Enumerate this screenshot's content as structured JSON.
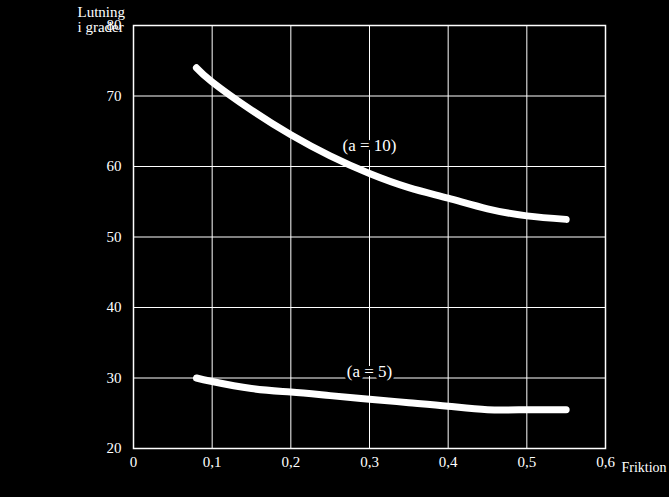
{
  "chart_data": {
    "type": "line",
    "y_label": "Lutning\ni grader",
    "x_label": "Friktion",
    "x": [
      0.08,
      0.1,
      0.15,
      0.2,
      0.25,
      0.3,
      0.35,
      0.4,
      0.45,
      0.5,
      0.55
    ],
    "series": [
      {
        "name": "(a = 10)",
        "color": "#ffffff",
        "values": [
          74,
          72,
          68,
          64.5,
          61.5,
          59,
          57,
          55.5,
          54,
          53,
          52.5
        ]
      },
      {
        "name": "(a = 5)",
        "color": "#ffffff",
        "values": [
          30,
          29.5,
          28.5,
          28,
          27.5,
          27,
          26.5,
          26,
          25.5,
          25.5,
          25.5
        ]
      }
    ],
    "xlim": [
      0,
      0.6
    ],
    "xticks": [
      0,
      {
        "value": 0.1,
        "label": "0,1"
      },
      {
        "value": 0.2,
        "label": "0,2"
      },
      {
        "value": 0.3,
        "label": "0,3"
      },
      {
        "value": 0.4,
        "label": "0,4"
      },
      {
        "value": 0.5,
        "label": "0,5"
      },
      {
        "value": 0.6,
        "label": "0,6"
      }
    ],
    "ylim": [
      20,
      80
    ],
    "yticks": [
      20,
      30,
      40,
      50,
      60,
      70,
      80
    ],
    "grid": true
  }
}
